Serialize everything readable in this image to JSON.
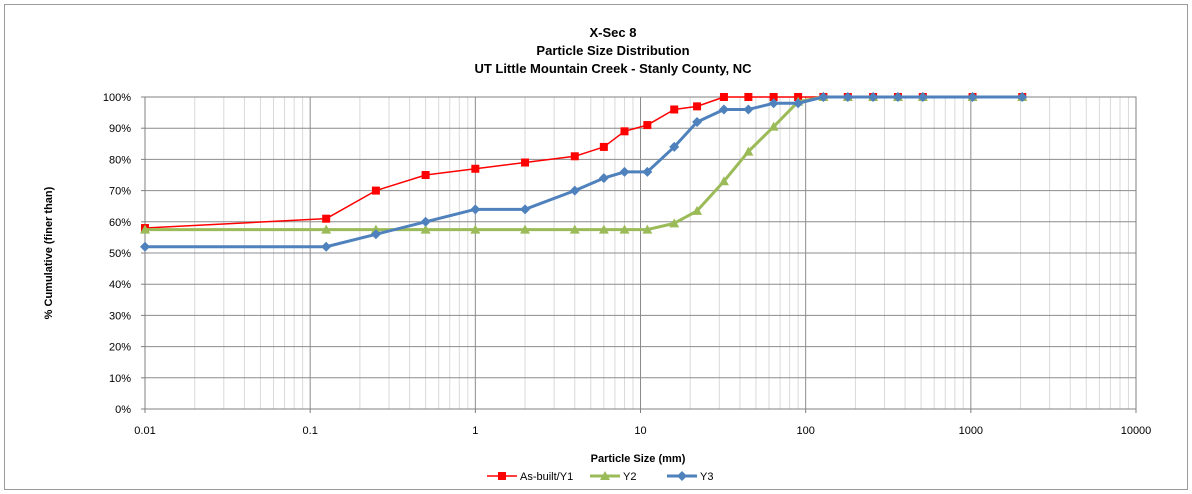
{
  "chart_data": {
    "type": "line",
    "title": [
      "X-Sec 8",
      "Particle Size Distribution",
      "UT Little Mountain Creek - Stanly County, NC"
    ],
    "xlabel": "Particle Size (mm)",
    "ylabel": "% Cumulative (finer than)",
    "xscale": "log",
    "xlim": [
      0.01,
      10000
    ],
    "ylim": [
      0,
      100
    ],
    "x_ticks": [
      "0.01",
      "0.1",
      "1",
      "10",
      "100",
      "1000",
      "10000"
    ],
    "y_ticks": [
      "0%",
      "10%",
      "20%",
      "30%",
      "40%",
      "50%",
      "60%",
      "70%",
      "80%",
      "90%",
      "100%"
    ],
    "grid": true,
    "legend_position": "bottom",
    "series": [
      {
        "name": "As-built/Y1",
        "color": "#ff0000",
        "marker": "square",
        "x": [
          0.01,
          0.125,
          0.25,
          0.5,
          1,
          2,
          4,
          6,
          8,
          11,
          16,
          22,
          32,
          45,
          64,
          90,
          128,
          180,
          256,
          362,
          512,
          1024,
          2048
        ],
        "y": [
          58,
          61,
          70,
          75,
          77,
          79,
          81,
          84,
          89,
          91,
          96,
          97,
          100,
          100,
          100,
          100,
          100,
          100,
          100,
          100,
          100,
          100,
          100
        ]
      },
      {
        "name": "Y2",
        "color": "#9bbb59",
        "marker": "triangle",
        "x": [
          0.01,
          0.125,
          0.25,
          0.5,
          1,
          2,
          4,
          6,
          8,
          11,
          16,
          22,
          32,
          45,
          64,
          90,
          128,
          180,
          256,
          362,
          512,
          1024,
          2048
        ],
        "y": [
          57.5,
          57.5,
          57.5,
          57.5,
          57.5,
          57.5,
          57.5,
          57.5,
          57.5,
          57.5,
          59.5,
          63.5,
          73,
          82.5,
          90.5,
          98.5,
          100,
          100,
          100,
          100,
          100,
          100,
          100
        ]
      },
      {
        "name": "Y3",
        "color": "#4f81bd",
        "marker": "diamond",
        "x": [
          0.01,
          0.125,
          0.25,
          0.5,
          1,
          2,
          4,
          6,
          8,
          11,
          16,
          22,
          32,
          45,
          64,
          90,
          128,
          180,
          256,
          362,
          512,
          1024,
          2048
        ],
        "y": [
          52,
          52,
          56,
          60,
          64,
          64,
          70,
          74,
          76,
          76,
          84,
          92,
          96,
          96,
          98,
          98,
          100,
          100,
          100,
          100,
          100,
          100,
          100
        ]
      }
    ]
  }
}
